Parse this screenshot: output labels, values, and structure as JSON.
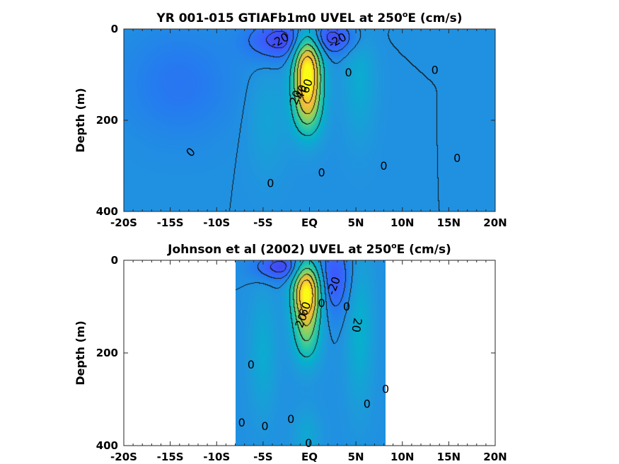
{
  "chart_data": [
    {
      "type": "heatmap",
      "title_prefix": "YR 001-015 GTIAFb1m0 UVEL at 250",
      "title_sup": "o",
      "title_suffix": "E (cm/s)",
      "ylabel": "Depth (m)",
      "xlim": [
        -20,
        20
      ],
      "ylim": [
        400,
        0
      ],
      "x_ticks": [
        -20,
        -15,
        -10,
        -5,
        0,
        5,
        10,
        15,
        20
      ],
      "x_tick_labels": [
        "-20S",
        "-15S",
        "-10S",
        "-5S",
        "EQ",
        "5N",
        "10N",
        "15N",
        "20N"
      ],
      "y_ticks": [
        0,
        200,
        400
      ],
      "y_tick_labels": [
        "0",
        "200",
        "400"
      ],
      "data_extent": [
        -20,
        20
      ],
      "features": [
        {
          "kind": "core",
          "lat": -0.2,
          "depth": 90,
          "value": 100,
          "sx": 1.0,
          "sy": 55
        },
        {
          "kind": "core",
          "lat": -0.2,
          "depth": 175,
          "value": 40,
          "sx": 1.1,
          "sy": 45
        },
        {
          "kind": "core",
          "lat": 5.4,
          "depth": 110,
          "value": 12,
          "sx": 1.2,
          "sy": 90
        },
        {
          "kind": "core",
          "lat": -4.5,
          "depth": 200,
          "value": 8,
          "sx": 1.5,
          "sy": 80
        },
        {
          "kind": "core",
          "lat": -3.0,
          "depth": 25,
          "value": -25,
          "sx": 2.5,
          "sy": 30
        },
        {
          "kind": "core",
          "lat": 2.5,
          "depth": 20,
          "value": -22,
          "sx": 2.0,
          "sy": 25
        },
        {
          "kind": "core",
          "lat": -14,
          "depth": 120,
          "value": -10,
          "sx": 4.0,
          "sy": 80
        }
      ],
      "contour_labels": [
        {
          "text": "-20",
          "lat": -3.2,
          "depth": 25,
          "rot": -30
        },
        {
          "text": "-20",
          "lat": 3.0,
          "depth": 25,
          "rot": -30
        },
        {
          "text": "0",
          "lat": 4.2,
          "depth": 95,
          "rot": 0
        },
        {
          "text": "0",
          "lat": 13.5,
          "depth": 90,
          "rot": 0
        },
        {
          "text": "0",
          "lat": -12.8,
          "depth": 270,
          "rot": -45
        },
        {
          "text": "0",
          "lat": 1.3,
          "depth": 315,
          "rot": 0
        },
        {
          "text": "0",
          "lat": 8.0,
          "depth": 300,
          "rot": 0
        },
        {
          "text": "0",
          "lat": 15.9,
          "depth": 283,
          "rot": 0
        },
        {
          "text": "0",
          "lat": -4.2,
          "depth": 338,
          "rot": 0
        },
        {
          "text": "20",
          "lat": -1.5,
          "depth": 150,
          "rot": -70
        },
        {
          "text": "40",
          "lat": -0.9,
          "depth": 138,
          "rot": -70
        },
        {
          "text": "60",
          "lat": -0.3,
          "depth": 125,
          "rot": -70
        }
      ]
    },
    {
      "type": "heatmap",
      "title_prefix": "Johnson et al (2002) UVEL at 250",
      "title_sup": "o",
      "title_suffix": "E (cm/s)",
      "ylabel": "Depth (m)",
      "xlim": [
        -20,
        20
      ],
      "ylim": [
        400,
        0
      ],
      "x_ticks": [
        -20,
        -15,
        -10,
        -5,
        0,
        5,
        10,
        15,
        20
      ],
      "x_tick_labels": [
        "-20S",
        "-15S",
        "-10S",
        "-5S",
        "EQ",
        "5N",
        "10N",
        "15N",
        "20N"
      ],
      "y_ticks": [
        0,
        200,
        400
      ],
      "y_tick_labels": [
        "0",
        "200",
        "400"
      ],
      "data_extent": [
        -8,
        8.2
      ],
      "features": [
        {
          "kind": "core",
          "lat": -0.3,
          "depth": 70,
          "value": 100,
          "sx": 1.0,
          "sy": 45
        },
        {
          "kind": "core",
          "lat": -0.3,
          "depth": 160,
          "value": 35,
          "sx": 1.0,
          "sy": 45
        },
        {
          "kind": "core",
          "lat": 5.4,
          "depth": 150,
          "value": 15,
          "sx": 1.0,
          "sy": 110
        },
        {
          "kind": "core",
          "lat": -5.0,
          "depth": 200,
          "value": 12,
          "sx": 1.0,
          "sy": 90
        },
        {
          "kind": "core",
          "lat": -3.0,
          "depth": 15,
          "value": -25,
          "sx": 2.0,
          "sy": 20
        },
        {
          "kind": "core",
          "lat": 2.7,
          "depth": 40,
          "value": -20,
          "sx": 1.3,
          "sy": 55
        },
        {
          "kind": "core",
          "lat": -0.3,
          "depth": 380,
          "value": 10,
          "sx": 1.0,
          "sy": 40
        }
      ],
      "contour_labels": [
        {
          "text": "-20",
          "lat": 2.6,
          "depth": 55,
          "rot": -70
        },
        {
          "text": "20",
          "lat": 5.1,
          "depth": 140,
          "rot": 100
        },
        {
          "text": "0",
          "lat": 4.0,
          "depth": 100,
          "rot": 0
        },
        {
          "text": "0",
          "lat": 1.3,
          "depth": 92,
          "rot": 0
        },
        {
          "text": "20",
          "lat": -0.9,
          "depth": 130,
          "rot": -70
        },
        {
          "text": "60",
          "lat": -0.5,
          "depth": 105,
          "rot": -70
        },
        {
          "text": "0",
          "lat": -6.3,
          "depth": 225,
          "rot": 0
        },
        {
          "text": "0",
          "lat": 8.2,
          "depth": 278,
          "rot": 0
        },
        {
          "text": "0",
          "lat": 6.2,
          "depth": 310,
          "rot": 0
        },
        {
          "text": "0",
          "lat": -7.3,
          "depth": 350,
          "rot": 0
        },
        {
          "text": "0",
          "lat": -4.8,
          "depth": 358,
          "rot": 0
        },
        {
          "text": "0",
          "lat": -2.0,
          "depth": 343,
          "rot": 0
        },
        {
          "text": "0",
          "lat": -0.1,
          "depth": 395,
          "rot": 0
        }
      ]
    }
  ]
}
